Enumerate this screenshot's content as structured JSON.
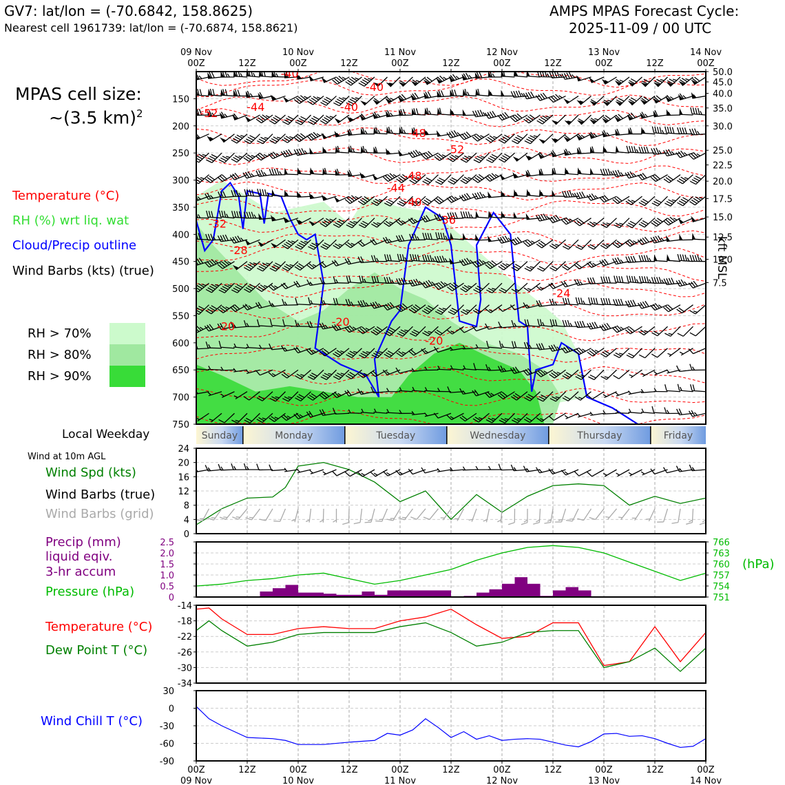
{
  "header": {
    "station_line": "GV7: lat/lon = (-70.6842, 158.8625)",
    "nearest_line": "Nearest cell 1961739: lat/lon = (-70.6874, 158.8621)",
    "forecast_title": "AMPS MPAS Forecast Cycle:",
    "cycle": "2025-11-09 / 00 UTC",
    "cell_size_label": "MPAS cell size:",
    "cell_size_value": "~(3.5 km)",
    "cell_size_exp": "2"
  },
  "legend": {
    "temperature": "Temperature (°C)",
    "rh": "RH (%) wrt liq. wat",
    "cloud": "Cloud/Precip outline",
    "wind": "Wind Barbs (kts) (true)",
    "rh70": "RH > 70%",
    "rh80": "RH > 80%",
    "rh90": "RH > 90%"
  },
  "colors": {
    "temperature": "#ff0000",
    "rh": "#33dd33",
    "rh_label": "#33dd33",
    "cloud": "#0000ff",
    "rh70": "#ccfacc",
    "rh80": "#a0e8a0",
    "rh90": "#38dc38",
    "wind_spd": "#008000",
    "wind_grid": "#aaaaaa",
    "precip": "#800080",
    "pressure": "#00bb00",
    "dewpoint": "#008000",
    "windchill": "#0000ff"
  },
  "weekday": {
    "label": "Local Weekday",
    "days": [
      "Sunday",
      "Monday",
      "Tuesday",
      "Wednesday",
      "Thursday",
      "Friday"
    ]
  },
  "time_axis": {
    "top_hours": [
      "00Z",
      "12Z",
      "00Z",
      "12Z",
      "00Z",
      "12Z",
      "00Z",
      "12Z",
      "00Z",
      "12Z",
      "00Z"
    ],
    "dates": [
      "09 Nov",
      "10 Nov",
      "11 Nov",
      "12 Nov",
      "13 Nov",
      "14 Nov"
    ]
  },
  "section_labels": {
    "wind10m": "Wind at 10m AGL",
    "wind_spd": "Wind Spd (kts)",
    "wind_barbs_true": "Wind Barbs (true)",
    "wind_barbs_grid": "Wind Barbs (grid)",
    "precip_l1": "Precip (mm)",
    "precip_l2": "liquid eqiv.",
    "precip_l3": "3-hr accum",
    "pressure": "Pressure (hPa)",
    "pressure_unit": "(hPa)",
    "temperature": "Temperature (°C)",
    "dewpoint": "Dew Point T (°C)",
    "windchill": "Wind Chill T (°C)",
    "kft_label": "kft MSL"
  },
  "chart_data": [
    {
      "type": "heatmap",
      "name": "cross-section",
      "y_pressure_ticks": [
        "150",
        "200",
        "250",
        "300",
        "350",
        "400",
        "450",
        "500",
        "550",
        "600",
        "650",
        "700",
        "750"
      ],
      "y_pressure_range": [
        100,
        750
      ],
      "y_kft_ticks": [
        {
          "kft": "50.0",
          "p": 100
        },
        {
          "kft": "45.0",
          "p": 119
        },
        {
          "kft": "40.0",
          "p": 140
        },
        {
          "kft": "35.0",
          "p": 167
        },
        {
          "kft": "30.0",
          "p": 200
        },
        {
          "kft": "25.0",
          "p": 245
        },
        {
          "kft": "22.5",
          "p": 272
        },
        {
          "kft": "20.0",
          "p": 302
        },
        {
          "kft": "17.5",
          "p": 334
        },
        {
          "kft": "15.0",
          "p": 368
        },
        {
          "kft": "12.5",
          "p": 405
        },
        {
          "kft": "10.0",
          "p": 446
        },
        {
          "kft": "7.5",
          "p": 489
        }
      ],
      "temperature_labels": [
        {
          "text": "-40",
          "h": 22,
          "p": 103
        },
        {
          "text": "-40",
          "h": 42,
          "p": 128
        },
        {
          "text": "-52",
          "h": 3,
          "p": 176
        },
        {
          "text": "-44",
          "h": 14,
          "p": 165
        },
        {
          "text": "-40",
          "h": 36,
          "p": 165
        },
        {
          "text": "-48",
          "h": 52,
          "p": 213
        },
        {
          "text": "-52",
          "h": 61,
          "p": 243
        },
        {
          "text": "-48",
          "h": 51,
          "p": 292
        },
        {
          "text": "-44",
          "h": 47,
          "p": 314
        },
        {
          "text": "-40",
          "h": 51,
          "p": 340
        },
        {
          "text": "-36",
          "h": 59,
          "p": 373
        },
        {
          "text": "-32",
          "h": 5,
          "p": 380
        },
        {
          "text": "-28",
          "h": 10,
          "p": 429
        },
        {
          "text": "-24",
          "h": 86,
          "p": 508
        },
        {
          "text": "-20",
          "h": 34,
          "p": 561
        },
        {
          "text": "-20",
          "h": 7,
          "p": 569
        },
        {
          "text": "-20",
          "h": 56,
          "p": 596
        }
      ],
      "surface_wind_speed_kts": {
        "x_hours": [
          0,
          6,
          12,
          18,
          21,
          24,
          30,
          36,
          42,
          48,
          54,
          60,
          66,
          72,
          78,
          84,
          90,
          96,
          102,
          108,
          114,
          120
        ],
        "values": [
          2.5,
          7,
          10,
          10.3,
          13,
          19,
          20,
          18,
          14.5,
          9,
          12,
          4,
          11,
          6,
          10.5,
          13.5,
          14,
          13.5,
          8,
          10.5,
          8.5,
          10
        ]
      }
    },
    {
      "type": "line",
      "name": "wind-speed",
      "ylabel": "Wind Spd (kts)",
      "ylim": [
        0,
        24
      ],
      "yticks": [
        "0",
        "4",
        "8",
        "12",
        "16",
        "20",
        "24"
      ],
      "x": [
        0,
        6,
        12,
        18,
        21,
        24,
        30,
        36,
        42,
        48,
        54,
        60,
        66,
        72,
        78,
        84,
        90,
        96,
        102,
        108,
        114,
        120
      ],
      "series": [
        {
          "name": "Wind Spd (kts)",
          "values": [
            2.5,
            7,
            10,
            10.3,
            13,
            19,
            20,
            18,
            14.5,
            9,
            12,
            4,
            11,
            6,
            10.5,
            13.5,
            14,
            13.5,
            8,
            10.5,
            8.5,
            10
          ]
        }
      ]
    },
    {
      "type": "bar",
      "name": "precip-pressure",
      "ylabel": "Precip (mm)",
      "ylim": [
        0,
        2.5
      ],
      "yticks": [
        "0",
        "0.5",
        "1.0",
        "1.5",
        "2.0",
        "2.5"
      ],
      "pressure_ylim": [
        751,
        766
      ],
      "pressure_yticks": [
        "751",
        "754",
        "757",
        "760",
        "763",
        "766"
      ],
      "precip_x": [
        4.5,
        7.5,
        10.5,
        13.5,
        16.5,
        19.5,
        22.5,
        25.5,
        28.5,
        31.5,
        34.5,
        37.5,
        40.5,
        43.5,
        46.5,
        49.5,
        52.5,
        55.5,
        58.5,
        61.5,
        64.5,
        67.5,
        70.5,
        73.5,
        76.5,
        79.5,
        82.5,
        85.5,
        88.5,
        91.5
      ],
      "precip_values": [
        0.0,
        0.0,
        0.0,
        0.0,
        0.25,
        0.4,
        0.55,
        0.2,
        0.2,
        0.15,
        0.1,
        0.1,
        0.25,
        0.1,
        0.3,
        0.3,
        0.3,
        0.3,
        0.3,
        0.0,
        0.05,
        0.2,
        0.35,
        0.6,
        0.9,
        0.6,
        0.05,
        0.3,
        0.45,
        0.3
      ],
      "pressure_x": [
        0,
        6,
        12,
        18,
        24,
        30,
        36,
        42,
        48,
        54,
        60,
        66,
        72,
        78,
        84,
        90,
        96,
        102,
        108,
        114,
        120
      ],
      "pressure_values": [
        754,
        754.5,
        755.5,
        756,
        757,
        757.5,
        756,
        754.5,
        755.5,
        757,
        758.5,
        761,
        763,
        764.5,
        765,
        764.5,
        763,
        760.5,
        758,
        755.5,
        757.5
      ]
    },
    {
      "type": "line",
      "name": "temperature-dewpoint",
      "ylim": [
        -34,
        -14
      ],
      "yticks": [
        "-14",
        "-18",
        "-22",
        "-26",
        "-30",
        "-34"
      ],
      "x": [
        0,
        3,
        6,
        12,
        18,
        24,
        30,
        36,
        42,
        48,
        54,
        60,
        66,
        72,
        78,
        84,
        90,
        96,
        102,
        108,
        114,
        120
      ],
      "series": [
        {
          "name": "Temperature (°C)",
          "values": [
            -15,
            -14.7,
            -17.5,
            -21.5,
            -21.5,
            -20,
            -19.5,
            -20,
            -20,
            -18,
            -17,
            -15,
            -19,
            -22.5,
            -22,
            -18.5,
            -18.5,
            -29.5,
            -28.5,
            -19.5,
            -28.5,
            -21
          ]
        },
        {
          "name": "Dew Point T (°C)",
          "values": [
            -20.5,
            -18,
            -20.5,
            -24.5,
            -23.5,
            -21.5,
            -21,
            -21,
            -21,
            -19.5,
            -18.5,
            -21,
            -24.5,
            -23.5,
            -21,
            -20.5,
            -20.5,
            -30,
            -28.5,
            -25,
            -31,
            -25
          ]
        }
      ]
    },
    {
      "type": "line",
      "name": "wind-chill",
      "ylabel": "Wind Chill T (°C)",
      "ylim": [
        -90,
        30
      ],
      "yticks": [
        "30",
        "0",
        "-30",
        "-60",
        "-90"
      ],
      "x": [
        0,
        3,
        6,
        12,
        18,
        21,
        24,
        30,
        36,
        42,
        45,
        48,
        51,
        54,
        57,
        60,
        63,
        66,
        69,
        72,
        75,
        78,
        81,
        84,
        87,
        90,
        93,
        96,
        99,
        102,
        105,
        108,
        111,
        114,
        117,
        120
      ],
      "series": [
        {
          "name": "Wind Chill T (°C)",
          "values": [
            3,
            -18,
            -30,
            -50,
            -52,
            -55,
            -62,
            -62,
            -58,
            -55,
            -43,
            -46,
            -37,
            -18,
            -33,
            -50,
            -40,
            -53,
            -47,
            -55,
            -53,
            -52,
            -53,
            -58,
            -63,
            -66,
            -57,
            -44,
            -43,
            -48,
            -47,
            -52,
            -60,
            -67,
            -65,
            -52
          ]
        }
      ]
    }
  ]
}
